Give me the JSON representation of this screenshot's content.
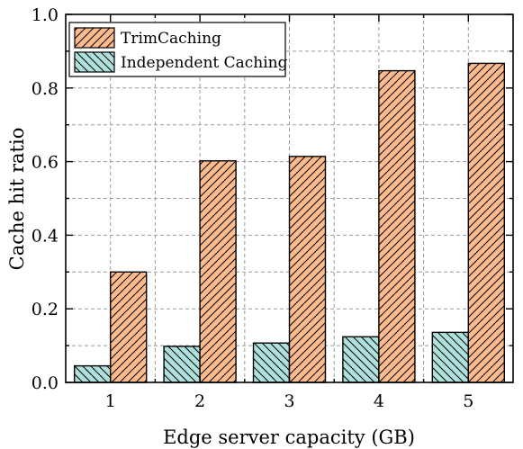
{
  "chart_data": {
    "type": "bar",
    "categories": [
      "1",
      "2",
      "3",
      "4",
      "5"
    ],
    "series": [
      {
        "name": "Independent Caching",
        "values": [
          0.045,
          0.098,
          0.107,
          0.124,
          0.136
        ],
        "color": "#aee0dc",
        "hatch": "backslash"
      },
      {
        "name": "TrimCaching",
        "values": [
          0.3,
          0.602,
          0.614,
          0.847,
          0.867
        ],
        "color": "#fdbb8c",
        "hatch": "slash"
      }
    ],
    "legend_order": [
      "TrimCaching",
      "Independent Caching"
    ],
    "title": "",
    "xlabel": "Edge server capacity (GB)",
    "ylabel": "Cache hit ratio",
    "ylim": [
      0,
      1.0
    ],
    "yticks": [
      "0.0",
      "0.2",
      "0.4",
      "0.6",
      "0.8",
      "1.0"
    ],
    "grid": true,
    "legend_position": "top-left"
  }
}
